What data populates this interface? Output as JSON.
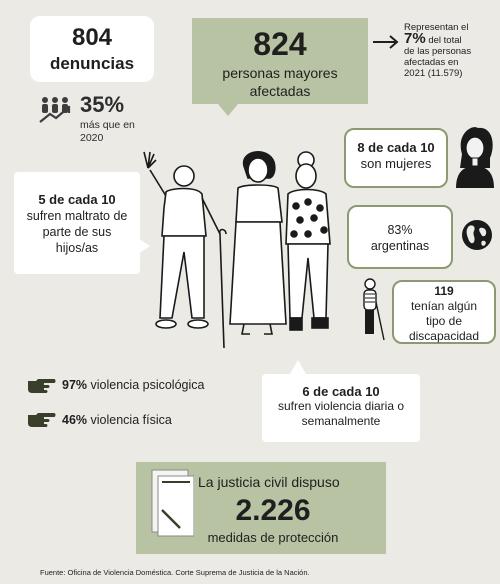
{
  "denuncias": {
    "number": "804",
    "label": "denuncias"
  },
  "mayores": {
    "number": "824",
    "label_line1": "personas mayores",
    "label_line2": "afectadas"
  },
  "representan": {
    "line1": "Representan el",
    "pct": "7%",
    "pct_suffix": "del total",
    "line2": "de las personas",
    "line3": "afectadas en",
    "line4": "2021 (11.579)"
  },
  "aumento": {
    "pct": "35%",
    "label_line1": "más que en",
    "label_line2": "2020"
  },
  "mujeres": {
    "line1": "8 de cada 10",
    "line2": "son mujeres"
  },
  "argentinas": {
    "line1": "83%",
    "line2": "argentinas"
  },
  "discapacidad": {
    "line1": "119",
    "line2": "tenían algún",
    "line3": "tipo de",
    "line4": "discapacidad"
  },
  "maltrato": {
    "line1": "5 de cada 10",
    "line2": "sufren maltrato de",
    "line3": "parte de sus",
    "line4": "hijos/as"
  },
  "diaria": {
    "line1": "6 de cada 10",
    "line2": "sufren violencia diaria o",
    "line3": "semanalmente"
  },
  "psicologica": {
    "pct": "97%",
    "label": "violencia psicológica"
  },
  "fisica": {
    "pct": "46%",
    "label": "violencia física"
  },
  "justicia": {
    "title": "La justicia civil dispuso",
    "number": "2.226",
    "label": "medidas de protección"
  },
  "fuente": "Fuente: Oficina de Violencia Doméstica. Corte Suprema de Justicia de la Nación.",
  "colors": {
    "sage": "#b7c3a3",
    "border": "#8c9a72",
    "background": "#ebeae5"
  }
}
